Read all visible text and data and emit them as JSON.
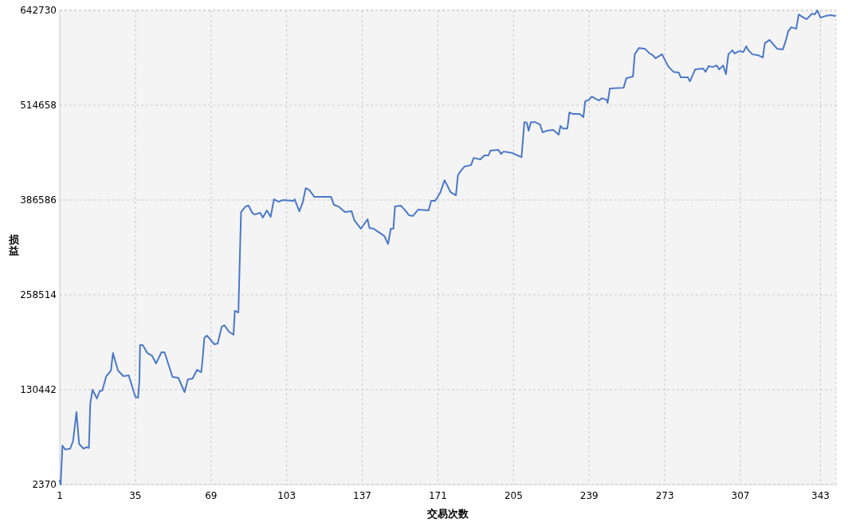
{
  "chart_data": {
    "type": "line",
    "xlabel": "交易次数",
    "ylabel": "损益",
    "xlim": [
      1,
      350
    ],
    "xticks": [
      1,
      35,
      69,
      103,
      137,
      171,
      205,
      239,
      273,
      307,
      343
    ],
    "ylim": [
      2370,
      642730
    ],
    "yticks": [
      2370,
      130442,
      258514,
      386586,
      514658,
      642730
    ],
    "grid": true,
    "marker": "none",
    "line_style": "solid",
    "series": [
      {
        "color": "#4a78c8",
        "x": [
          1,
          1.4,
          2.2,
          3.4,
          5.7,
          7,
          8.5,
          9.7,
          11.7,
          12.9,
          14.1,
          14.7,
          15.7,
          17.7,
          18.9,
          20.1,
          21.9,
          24,
          24.9,
          27.2,
          29.6,
          32,
          35,
          36.2,
          36.8,
          37.1,
          38.3,
          40.4,
          42.4,
          44.3,
          46.7,
          48.1,
          51.7,
          54.3,
          57.1,
          58.6,
          60.7,
          62.7,
          64.6,
          65.1,
          66,
          67.2,
          70.5,
          72,
          73.8,
          75,
          77,
          79.1,
          79.7,
          81.3,
          82.1,
          82.5,
          84.5,
          85.9,
          87.5,
          88.7,
          91.1,
          92.3,
          94.1,
          95.8,
          97.3,
          99.4,
          101.2,
          106,
          106.6,
          108.7,
          110.2,
          111.6,
          113.1,
          115.5,
          123,
          124.2,
          126.3,
          129.2,
          132.2,
          133.4,
          136.4,
          139.4,
          140.2,
          142.1,
          144.8,
          146.9,
          148.6,
          149.8,
          151,
          151.7,
          154.3,
          156.7,
          157.9,
          159.7,
          162.1,
          166.8,
          168,
          169.8,
          172,
          174,
          176.7,
          179.1,
          180,
          181.1,
          182.9,
          185.9,
          187.1,
          190.1,
          191.9,
          193.7,
          194.6,
          198.2,
          199.4,
          200.6,
          204.6,
          206.8,
          208.6,
          209.4,
          209.9,
          211,
          211.8,
          212.8,
          214.6,
          216.9,
          218.1,
          219.9,
          222.9,
          225.3,
          226.1,
          227.1,
          229.2,
          230.1,
          231.8,
          234.8,
          236.4,
          237.2,
          239,
          240.2,
          242,
          243.5,
          244.7,
          246.8,
          247.3,
          248.3,
          254.5,
          255.7,
          258.7,
          259.5,
          261.4,
          264.1,
          266.2,
          267.6,
          268.8,
          271.8,
          274.5,
          276.9,
          279.3,
          280.2,
          283.4,
          284.3,
          286.7,
          290.3,
          291.3,
          292.7,
          294.5,
          296.3,
          297.5,
          299.2,
          300.5,
          301.6,
          303.4,
          304.4,
          306.4,
          308.4,
          309.6,
          310.6,
          312.4,
          314.8,
          317.1,
          318,
          320.1,
          323.5,
          326.1,
          327.5,
          328.5,
          329.9,
          332.1,
          333.2,
          335.4,
          336.8,
          339.2,
          340.4,
          341.6,
          343,
          345.2,
          347.6,
          349.6
        ],
        "values": [
          7750,
          2370,
          55100,
          49700,
          50800,
          61600,
          100300,
          57250,
          50800,
          52900,
          51900,
          111100,
          130400,
          118600,
          128300,
          129300,
          148700,
          156200,
          179900,
          156200,
          148700,
          149800,
          120700,
          119700,
          142250,
          190700,
          190700,
          179900,
          176700,
          165900,
          181000,
          181000,
          147600,
          146600,
          127200,
          144400,
          145500,
          157300,
          154100,
          168100,
          200400,
          203600,
          191800,
          192800,
          215400,
          217600,
          209000,
          204700,
          236900,
          234800,
          325200,
          370400,
          377900,
          379000,
          369300,
          367100,
          369300,
          362800,
          372500,
          363900,
          387600,
          384400,
          386500,
          385400,
          387600,
          371400,
          383300,
          402700,
          400500,
          390800,
          390800,
          380100,
          377900,
          370400,
          371400,
          359600,
          347800,
          360700,
          348800,
          347800,
          342400,
          338100,
          327300,
          347800,
          347800,
          377900,
          379000,
          371400,
          366100,
          365000,
          373600,
          372500,
          385500,
          385500,
          396200,
          413400,
          397300,
          393000,
          419900,
          425200,
          431700,
          433800,
          443500,
          441400,
          446800,
          446800,
          453200,
          454300,
          448900,
          452100,
          450000,
          446800,
          444600,
          474700,
          491900,
          490900,
          480100,
          491900,
          491900,
          488700,
          478000,
          480100,
          481200,
          474700,
          486600,
          483300,
          483300,
          504900,
          502700,
          502700,
          498400,
          519900,
          522100,
          526400,
          523200,
          521000,
          524200,
          522100,
          517800,
          537200,
          538200,
          551100,
          553300,
          583400,
          592000,
          590900,
          584500,
          582300,
          578000,
          583400,
          567300,
          559700,
          558700,
          552200,
          552200,
          546800,
          563000,
          564100,
          559700,
          567300,
          566200,
          568400,
          563000,
          568400,
          556600,
          583400,
          588800,
          584500,
          587700,
          586600,
          594200,
          588800,
          583400,
          582300,
          579100,
          598500,
          602800,
          590900,
          589900,
          602800,
          614600,
          620000,
          617800,
          637200,
          632900,
          630800,
          638300,
          637200,
          642600,
          632900,
          635100,
          636200,
          635100
        ]
      }
    ]
  }
}
